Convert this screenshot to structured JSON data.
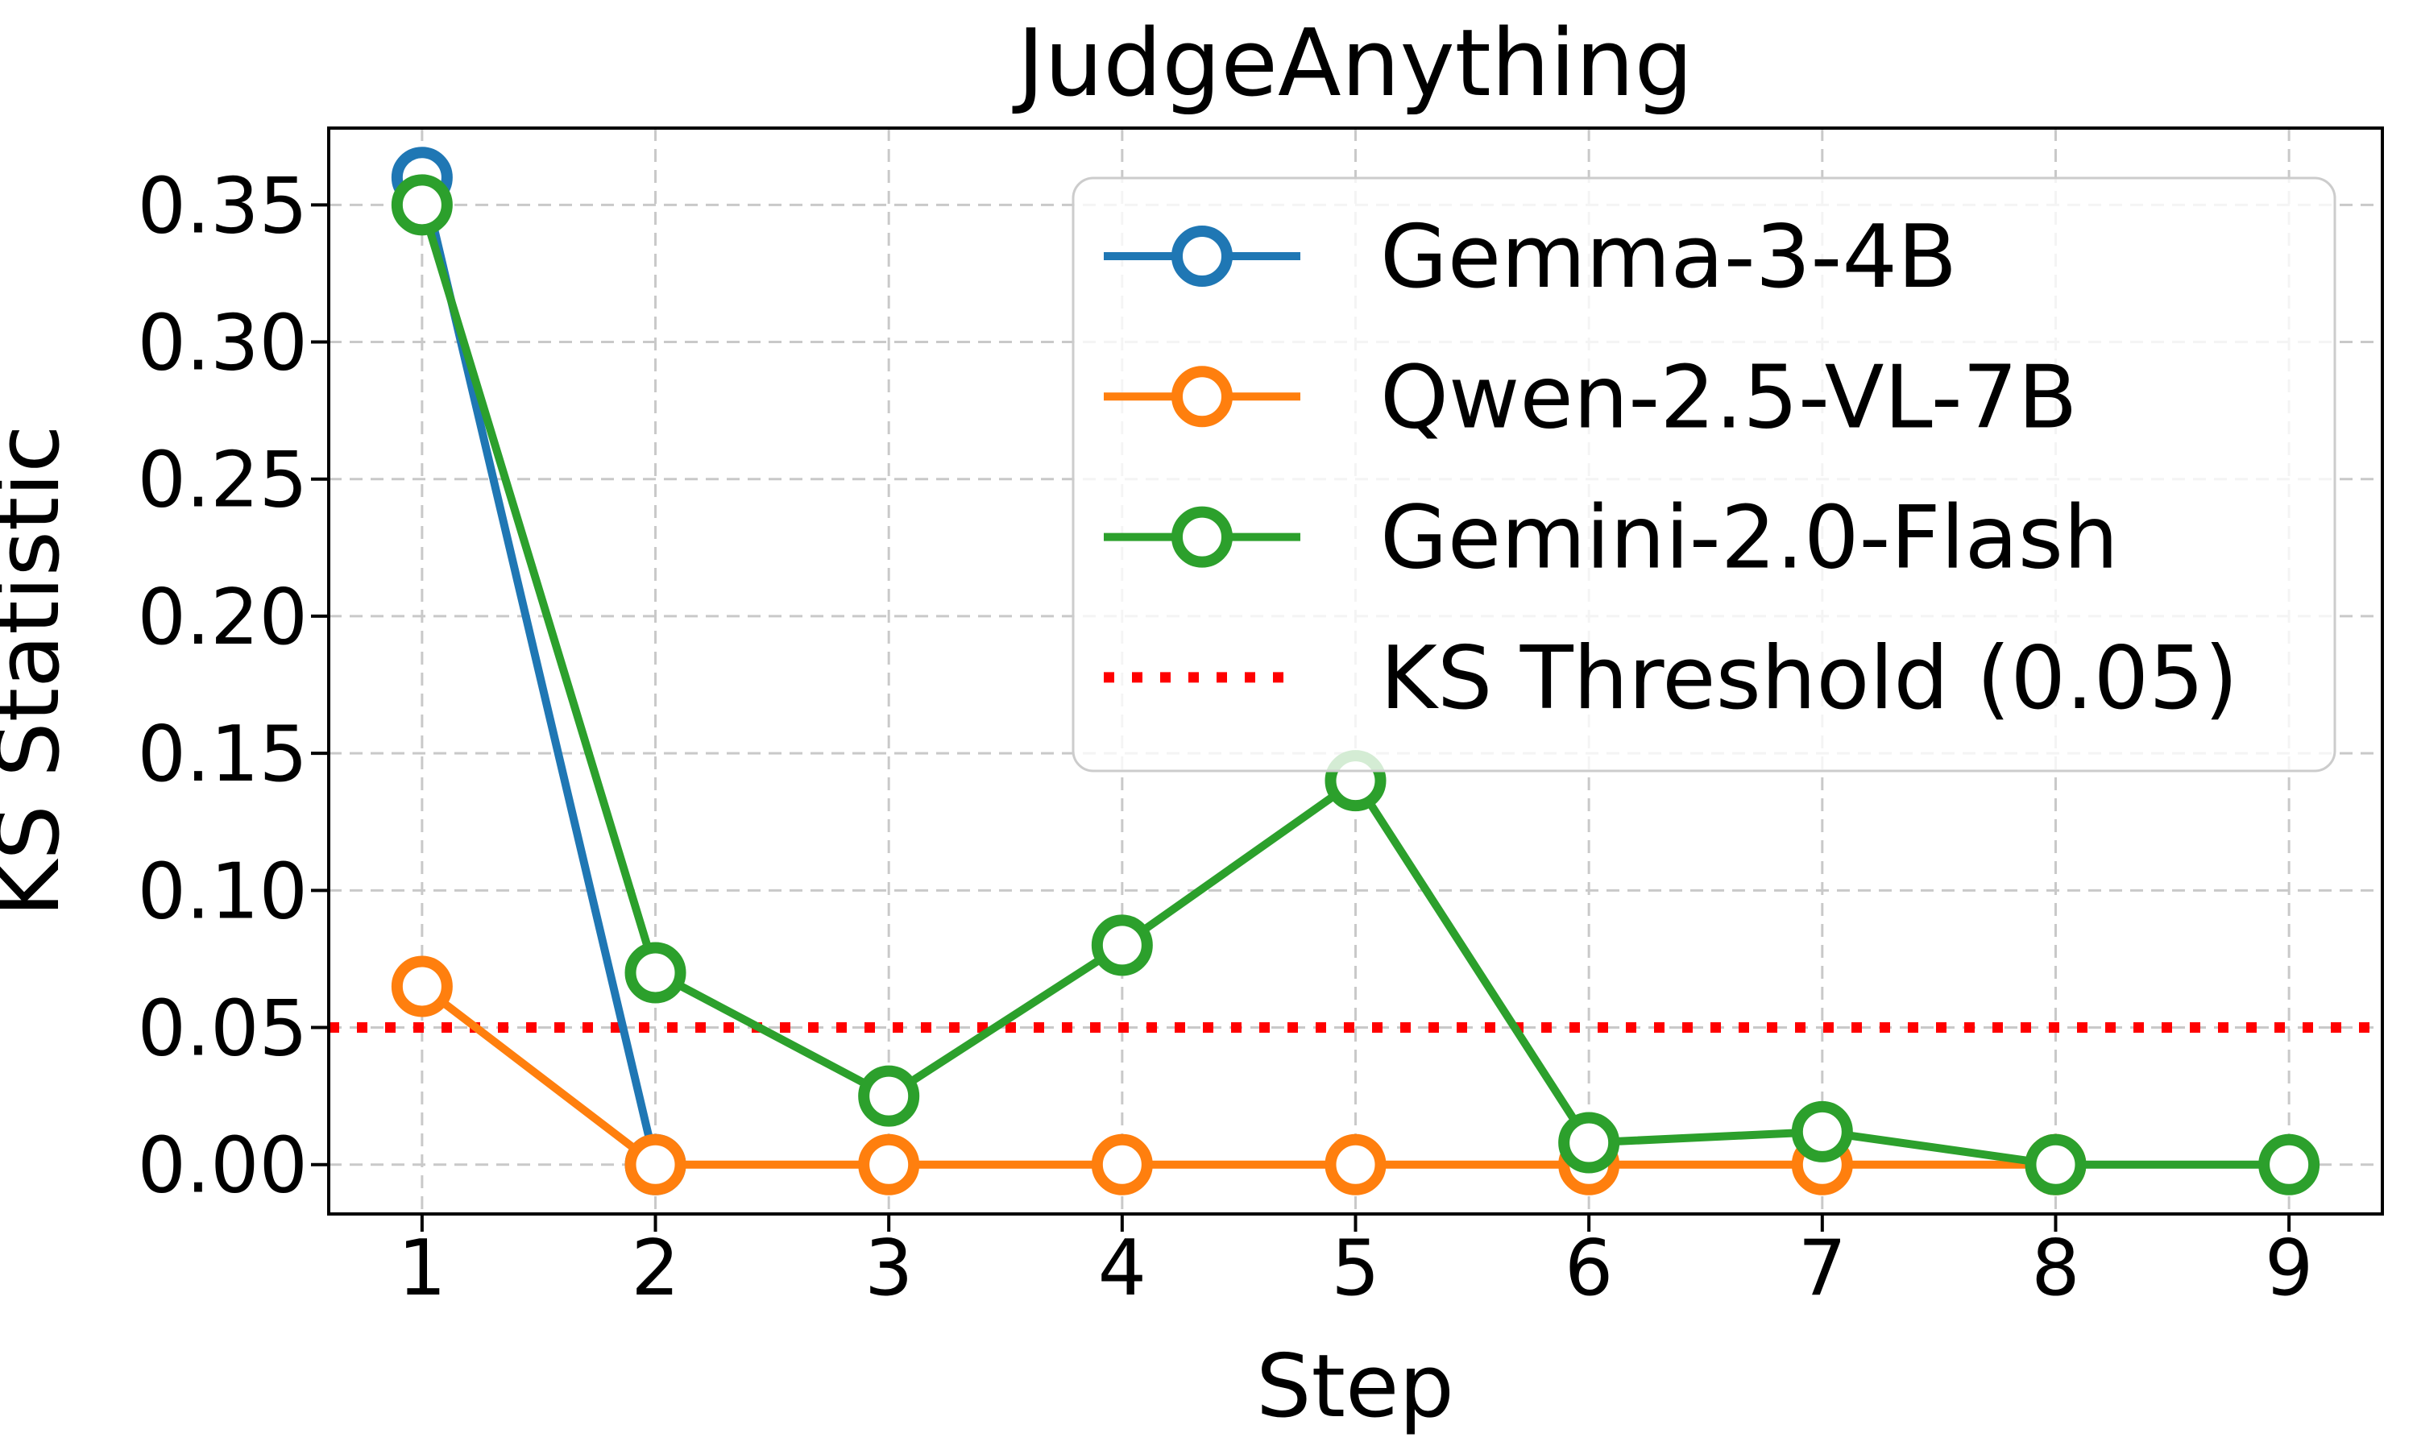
{
  "figure": {
    "background": "#ffffff",
    "spine_color": "#000000",
    "text_color": "#000000"
  },
  "chart_data": {
    "type": "line",
    "title": "JudgeAnything",
    "xlabel": "Step",
    "ylabel": "KS Statistic",
    "xticks": [
      1,
      2,
      3,
      4,
      5,
      6,
      7,
      8,
      9
    ],
    "ytick_labels": [
      "0.00",
      "0.05",
      "0.10",
      "0.15",
      "0.20",
      "0.25",
      "0.30",
      "0.35"
    ],
    "ytick_values": [
      0.0,
      0.05,
      0.1,
      0.15,
      0.2,
      0.25,
      0.3,
      0.35
    ],
    "xlim": [
      0.6,
      9.4
    ],
    "ylim": [
      -0.018,
      0.378
    ],
    "grid": true,
    "grid_color": "#c9c9c9",
    "legend_position": "upper right",
    "series": [
      {
        "name": "Gemma-3-4B",
        "color": "#1f77b4",
        "marker": "o",
        "x": [
          1,
          2
        ],
        "values": [
          0.36,
          0.0
        ]
      },
      {
        "name": "Qwen-2.5-VL-7B",
        "color": "#ff7f0e",
        "marker": "o",
        "x": [
          1,
          2,
          3,
          4,
          5,
          6,
          7,
          8
        ],
        "values": [
          0.065,
          0.0,
          0.0,
          0.0,
          0.0,
          0.0,
          0.0,
          0.0
        ]
      },
      {
        "name": "Gemini-2.0-Flash",
        "color": "#2ca02c",
        "marker": "o",
        "x": [
          1,
          2,
          3,
          4,
          5,
          6,
          7,
          8,
          9
        ],
        "values": [
          0.35,
          0.07,
          0.025,
          0.08,
          0.14,
          0.008,
          0.012,
          0.0,
          0.0
        ]
      }
    ],
    "threshold": {
      "label": "KS Threshold (0.05)",
      "value": 0.05,
      "color": "#ff0000",
      "linestyle": "dotted"
    }
  }
}
